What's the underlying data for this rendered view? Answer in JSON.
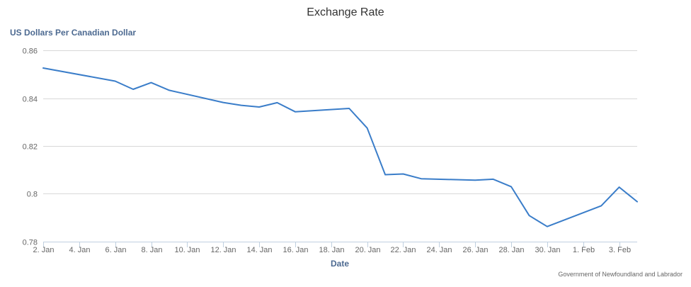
{
  "chart_data": {
    "type": "line",
    "title": "Exchange Rate",
    "subtitle": "",
    "ylabel": "US Dollars Per Canadian Dollar",
    "xlabel": "Date",
    "ylim": [
      0.78,
      0.86
    ],
    "y_ticks": [
      "0.86",
      "0.84",
      "0.82",
      "0.8",
      "0.78"
    ],
    "x_ticks": [
      "2. Jan",
      "4. Jan",
      "6. Jan",
      "8. Jan",
      "10. Jan",
      "12. Jan",
      "14. Jan",
      "16. Jan",
      "18. Jan",
      "20. Jan",
      "22. Jan",
      "24. Jan",
      "26. Jan",
      "28. Jan",
      "30. Jan",
      "1. Feb",
      "3. Feb"
    ],
    "x_range": [
      "2016-01-02",
      "2016-02-04"
    ],
    "grid": true,
    "legend": false,
    "series": [
      {
        "x": [
          "2016-01-02",
          "2016-01-06",
          "2016-01-07",
          "2016-01-08",
          "2016-01-09",
          "2016-01-12",
          "2016-01-13",
          "2016-01-14",
          "2016-01-15",
          "2016-01-16",
          "2016-01-19",
          "2016-01-20",
          "2016-01-21",
          "2016-01-22",
          "2016-01-23",
          "2016-01-26",
          "2016-01-27",
          "2016-01-28",
          "2016-01-29",
          "2016-01-30",
          "2016-02-02",
          "2016-02-03",
          "2016-02-04"
        ],
        "y": [
          0.8526,
          0.8471,
          0.8437,
          0.8465,
          0.8433,
          0.8382,
          0.837,
          0.8363,
          0.8381,
          0.8343,
          0.8357,
          0.8275,
          0.808,
          0.8083,
          0.8063,
          0.8057,
          0.8061,
          0.803,
          0.7909,
          0.7863,
          0.795,
          0.8028,
          0.7967
        ]
      }
    ],
    "colors": {
      "line": "#3a7dc9",
      "grid": "#d8d8d8",
      "axis_line": "#c0d0e0",
      "axis_title": "#4d6a91",
      "tick_text": "#666666",
      "title_text": "#333333"
    },
    "credits": "Government of Newfoundland and Labrador"
  }
}
